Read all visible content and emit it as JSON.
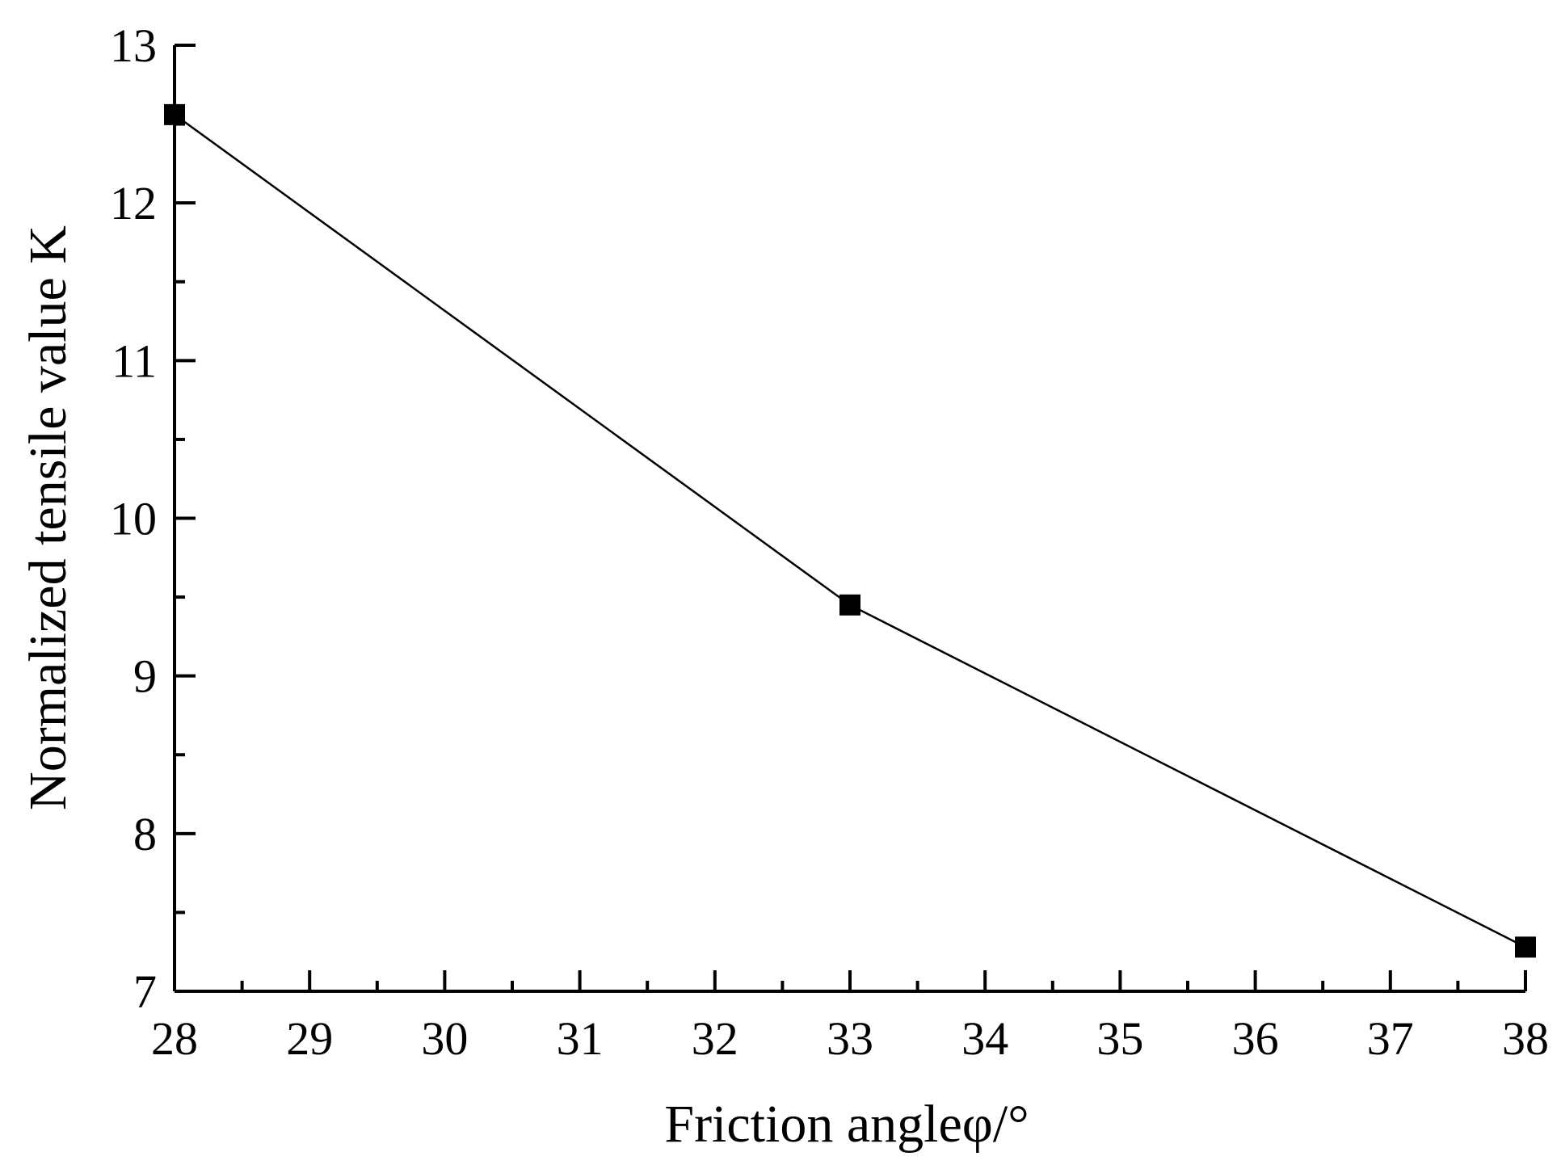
{
  "chart_data": {
    "type": "line",
    "title": "",
    "xlabel": "Friction angleφ/°",
    "ylabel": "Normalized tensile value K",
    "xlim": [
      28,
      38
    ],
    "ylim": [
      7,
      13
    ],
    "x_ticks": [
      "28",
      "29",
      "30",
      "31",
      "32",
      "33",
      "34",
      "35",
      "36",
      "37",
      "38"
    ],
    "y_ticks": [
      "7",
      "8",
      "9",
      "10",
      "11",
      "12",
      "13"
    ],
    "grid": false,
    "legend": "none",
    "series": [
      {
        "x": [
          28,
          33,
          38
        ],
        "y": [
          12.56,
          9.45,
          7.28
        ],
        "marker": "square",
        "color": "#000000"
      }
    ]
  }
}
